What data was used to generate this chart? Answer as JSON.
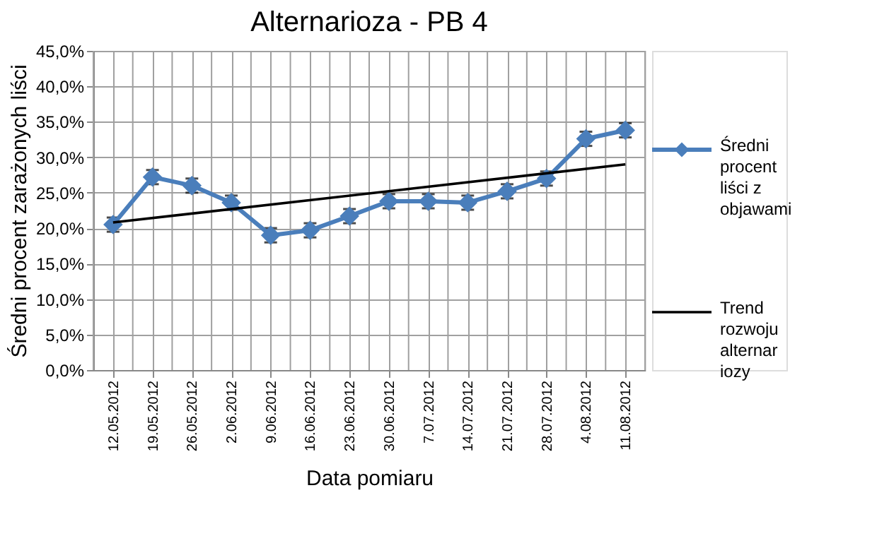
{
  "chart_data": {
    "type": "line",
    "title": "Alternarioza - PB 4",
    "xlabel": "Data pomiaru",
    "ylabel": "Średni procent zarażonych liści",
    "categories": [
      "12.05.2012",
      "19.05.2012",
      "26.05.2012",
      "2.06.2012",
      "9.06.2012",
      "16.06.2012",
      "23.06.2012",
      "30.06.2012",
      "7.07.2012",
      "14.07.2012",
      "21.07.2012",
      "28.07.2012",
      "4.08.2012",
      "11.08.2012"
    ],
    "series": [
      {
        "name": "Średni procent liści z objawami",
        "color": "#4a7ebb",
        "marker": "diamond",
        "values": [
          20.5,
          27.2,
          26.0,
          23.6,
          19.0,
          19.7,
          21.7,
          23.8,
          23.8,
          23.6,
          25.2,
          27.0,
          32.6,
          33.8
        ],
        "errors": [
          1.0,
          1.0,
          1.0,
          1.0,
          1.0,
          1.0,
          1.0,
          1.0,
          1.0,
          1.0,
          1.0,
          1.0,
          1.0,
          1.0
        ]
      },
      {
        "name": "Trend rozwoju alternariozy",
        "type": "line",
        "color": "#000000",
        "marker": "none",
        "x": [
          "12.05.2012",
          "11.08.2012"
        ],
        "values": [
          20.8,
          29.0
        ]
      }
    ],
    "ylim": [
      0,
      45
    ],
    "yticks": [
      {
        "value": 0,
        "label": "0,0%"
      },
      {
        "value": 5,
        "label": "5,0%"
      },
      {
        "value": 10,
        "label": "10,0%"
      },
      {
        "value": 15,
        "label": "15,0%"
      },
      {
        "value": 20,
        "label": "20,0%"
      },
      {
        "value": 25,
        "label": "25,0%"
      },
      {
        "value": 30,
        "label": "30,0%"
      },
      {
        "value": 35,
        "label": "35,0%"
      },
      {
        "value": 40,
        "label": "40,0%"
      },
      {
        "value": 45,
        "label": "45,0%"
      }
    ],
    "grid": true,
    "legend": "right"
  }
}
